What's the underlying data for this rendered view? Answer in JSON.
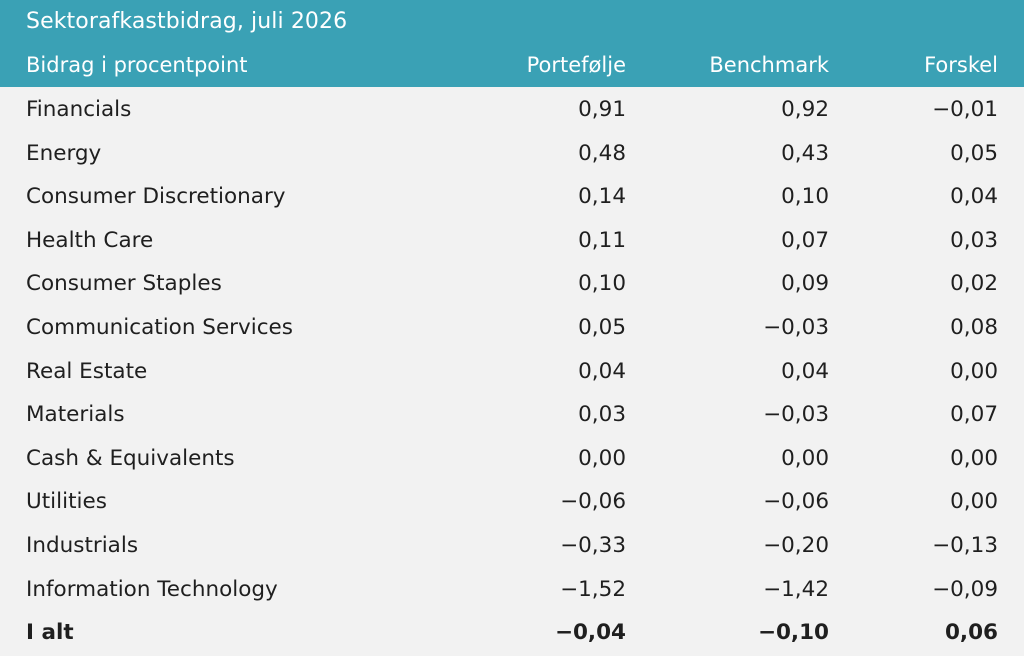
{
  "table": {
    "title": "Sektorafkastbidrag, juli 2026",
    "headers": {
      "label": "Bidrag i procentpoint",
      "portfolio": "Portefølje",
      "benchmark": "Benchmark",
      "difference": "Forskel"
    },
    "rows": [
      {
        "sector": "Financials",
        "portfolio": "0,91",
        "benchmark": "0,92",
        "difference": "−0,01"
      },
      {
        "sector": "Energy",
        "portfolio": "0,48",
        "benchmark": "0,43",
        "difference": "0,05"
      },
      {
        "sector": "Consumer Discretionary",
        "portfolio": "0,14",
        "benchmark": "0,10",
        "difference": "0,04"
      },
      {
        "sector": "Health Care",
        "portfolio": "0,11",
        "benchmark": "0,07",
        "difference": "0,03"
      },
      {
        "sector": "Consumer Staples",
        "portfolio": "0,10",
        "benchmark": "0,09",
        "difference": "0,02"
      },
      {
        "sector": "Communication Services",
        "portfolio": "0,05",
        "benchmark": "−0,03",
        "difference": "0,08"
      },
      {
        "sector": "Real Estate",
        "portfolio": "0,04",
        "benchmark": "0,04",
        "difference": "0,00"
      },
      {
        "sector": "Materials",
        "portfolio": "0,03",
        "benchmark": "−0,03",
        "difference": "0,07"
      },
      {
        "sector": "Cash & Equivalents",
        "portfolio": "0,00",
        "benchmark": "0,00",
        "difference": "0,00"
      },
      {
        "sector": "Utilities",
        "portfolio": "−0,06",
        "benchmark": "−0,06",
        "difference": "0,00"
      },
      {
        "sector": "Industrials",
        "portfolio": "−0,33",
        "benchmark": "−0,20",
        "difference": "−0,13"
      },
      {
        "sector": "Information Technology",
        "portfolio": "−1,52",
        "benchmark": "−1,42",
        "difference": "−0,09"
      }
    ],
    "total": {
      "label": "I alt",
      "portfolio": "−0,04",
      "benchmark": "−0,10",
      "difference": "0,06"
    }
  },
  "colors": {
    "header_background": "#3aa1b5",
    "body_background": "#f2f2f2"
  }
}
